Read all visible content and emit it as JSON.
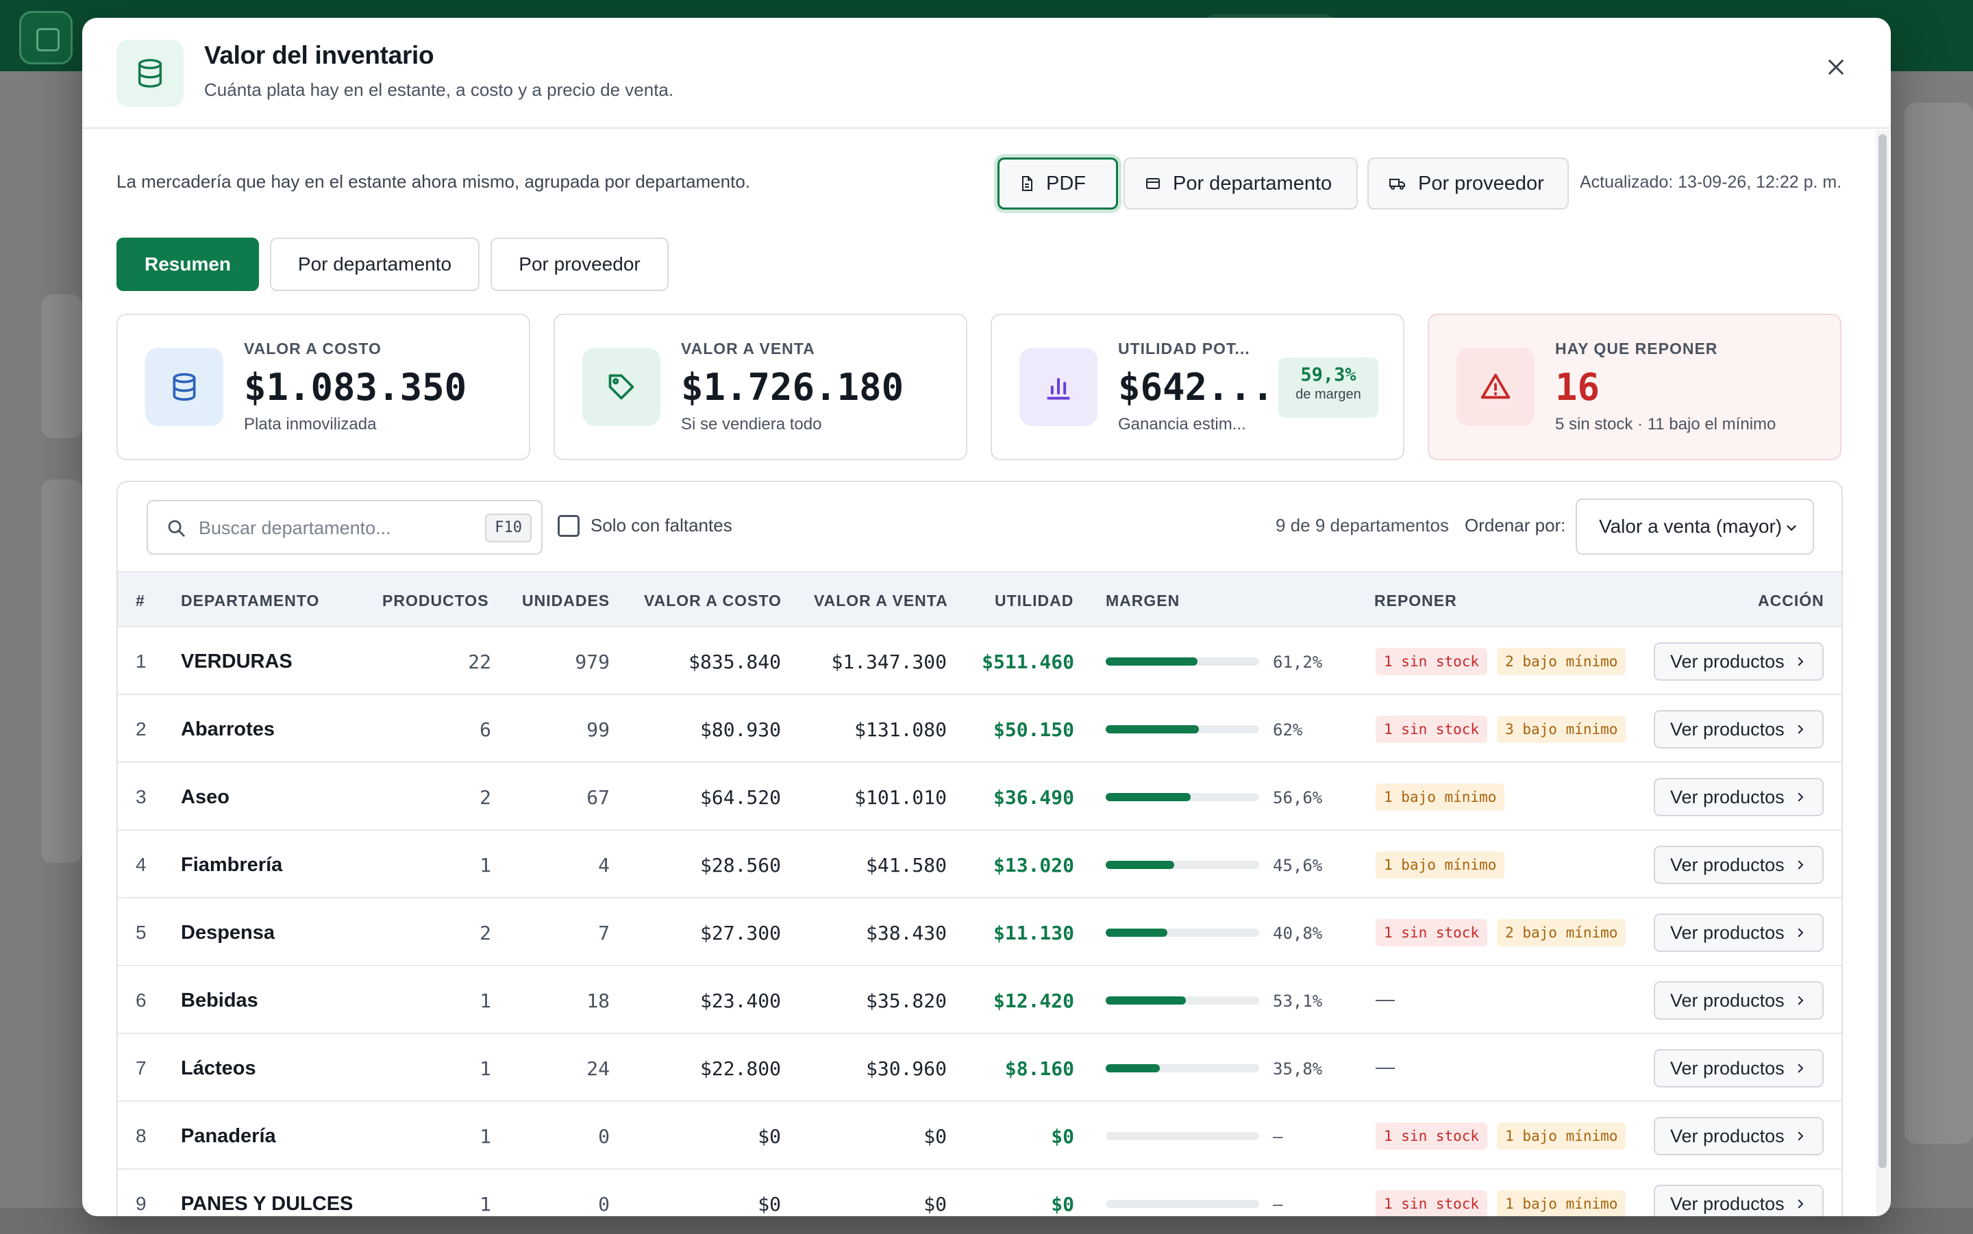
{
  "modal": {
    "title": "Valor del inventario",
    "subtitle": "Cuánta plata hay en el estante, a costo y a precio de venta.",
    "icon": "database-icon"
  },
  "toolbar": {
    "intro": "La mercadería que hay en el estante ahora mismo, agrupada por departamento.",
    "pdf_label": "PDF",
    "by_department_label": "Por departamento",
    "by_supplier_label": "Por proveedor",
    "updated": "Actualizado: 13-09-26, 12:22 p. m."
  },
  "tabs": [
    {
      "label": "Resumen",
      "active": true
    },
    {
      "label": "Por departamento",
      "active": false
    },
    {
      "label": "Por proveedor",
      "active": false
    }
  ],
  "cards": [
    {
      "label": "VALOR A COSTO",
      "value": "$1.083.350",
      "sub": "Plata inmovilizada",
      "icon": "database-icon",
      "color": "#2b63b8"
    },
    {
      "label": "VALOR A VENTA",
      "value": "$1.726.180",
      "sub": "Si se vendiera todo",
      "icon": "tag-icon",
      "color": "#0f7a4b"
    },
    {
      "label": "UTILIDAD POT...",
      "value": "$642....",
      "sub": "Ganancia estim...",
      "icon": "bar-chart-icon",
      "color": "#6a3fd6",
      "badge_value": "59,3%",
      "badge_label": "de margen"
    },
    {
      "label": "HAY QUE REPONER",
      "value": "16",
      "sub": "5 sin stock · 11 bajo el mínimo",
      "icon": "warning-icon",
      "color": "#c62828"
    }
  ],
  "filters": {
    "search_placeholder": "Buscar departamento...",
    "search_shortcut": "F10",
    "only_missing_label": "Solo con faltantes",
    "only_missing_checked": false,
    "count": "9 de 9 departamentos",
    "sort_label": "Ordenar por:",
    "sort_value": "Valor a venta (mayor)"
  },
  "table": {
    "headers": [
      "#",
      "DEPARTAMENTO",
      "PRODUCTOS",
      "UNIDADES",
      "VALOR A COSTO",
      "VALOR A VENTA",
      "UTILIDAD",
      "MARGEN",
      "REPONER",
      "ACCIÓN"
    ],
    "action_label": "Ver productos",
    "rows": [
      {
        "n": "1",
        "dept": "VERDURAS",
        "productos": "22",
        "unidades": "979",
        "costo": "$835.840",
        "venta": "$1.347.300",
        "utilidad": "$511.460",
        "margen": "61,2%",
        "margin_value": 61.2,
        "sin_stock": "1 sin stock",
        "bajo": "2 bajo mínimo"
      },
      {
        "n": "2",
        "dept": "Abarrotes",
        "productos": "6",
        "unidades": "99",
        "costo": "$80.930",
        "venta": "$131.080",
        "utilidad": "$50.150",
        "margen": "62%",
        "margin_value": 62,
        "sin_stock": "1 sin stock",
        "bajo": "3 bajo mínimo"
      },
      {
        "n": "3",
        "dept": "Aseo",
        "productos": "2",
        "unidades": "67",
        "costo": "$64.520",
        "venta": "$101.010",
        "utilidad": "$36.490",
        "margen": "56,6%",
        "margin_value": 56.6,
        "sin_stock": "",
        "bajo": "1 bajo mínimo"
      },
      {
        "n": "4",
        "dept": "Fiambrería",
        "productos": "1",
        "unidades": "4",
        "costo": "$28.560",
        "venta": "$41.580",
        "utilidad": "$13.020",
        "margen": "45,6%",
        "margin_value": 45.6,
        "sin_stock": "",
        "bajo": "1 bajo mínimo"
      },
      {
        "n": "5",
        "dept": "Despensa",
        "productos": "2",
        "unidades": "7",
        "costo": "$27.300",
        "venta": "$38.430",
        "utilidad": "$11.130",
        "margen": "40,8%",
        "margin_value": 40.8,
        "sin_stock": "1 sin stock",
        "bajo": "2 bajo mínimo"
      },
      {
        "n": "6",
        "dept": "Bebidas",
        "productos": "1",
        "unidades": "18",
        "costo": "$23.400",
        "venta": "$35.820",
        "utilidad": "$12.420",
        "margen": "53,1%",
        "margin_value": 53.1,
        "sin_stock": "",
        "bajo": "",
        "reponer_empty": "—"
      },
      {
        "n": "7",
        "dept": "Lácteos",
        "productos": "1",
        "unidades": "24",
        "costo": "$22.800",
        "venta": "$30.960",
        "utilidad": "$8.160",
        "margen": "35,8%",
        "margin_value": 35.8,
        "sin_stock": "",
        "bajo": "",
        "reponer_empty": "—"
      },
      {
        "n": "8",
        "dept": "Panadería",
        "productos": "1",
        "unidades": "0",
        "costo": "$0",
        "venta": "$0",
        "utilidad": "$0",
        "margen": "—",
        "margin_value": 0,
        "sin_stock": "1 sin stock",
        "bajo": "1 bajo mínimo"
      },
      {
        "n": "9",
        "dept": "PANES Y DULCES",
        "productos": "1",
        "unidades": "0",
        "costo": "$0",
        "venta": "$0",
        "utilidad": "$0",
        "margen": "—",
        "margin_value": 0,
        "sin_stock": "1 sin stock",
        "bajo": "1 bajo mínimo"
      }
    ]
  },
  "colors": {
    "brand": "#0f7a4b",
    "danger": "#c62828",
    "warning": "#a8620a"
  }
}
